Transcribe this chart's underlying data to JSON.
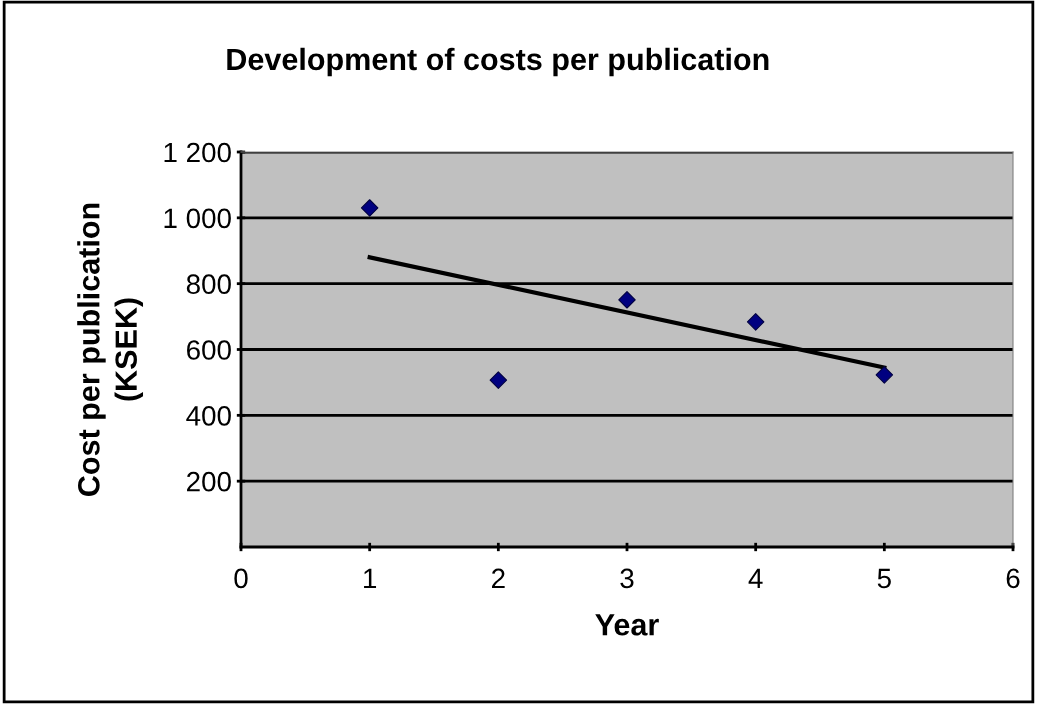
{
  "chart_data": {
    "type": "scatter",
    "title": "Development of costs per publication",
    "xlabel": "Year",
    "ylabel": "Cost per publication\n(KSEK)",
    "series": [
      {
        "color": "#000080",
        "marker": "diamond",
        "x": [
          1,
          2,
          3,
          4,
          5
        ],
        "values": [
          1030,
          507,
          751,
          684,
          523
        ]
      },
      {
        "type": "line",
        "color": "#000000",
        "marker": "none",
        "x": [
          1,
          5
        ],
        "values": [
          880,
          545
        ]
      }
    ],
    "xlim": [
      0,
      6
    ],
    "xticks": [
      0,
      1,
      2,
      3,
      4,
      5,
      6
    ],
    "ylim": [
      0,
      1200
    ],
    "yticks": [
      200,
      400,
      600,
      800,
      {
        "value": 1000,
        "label": "1 000"
      },
      {
        "value": 1200,
        "label": "1 200"
      }
    ],
    "grid": "y",
    "legend": false
  }
}
